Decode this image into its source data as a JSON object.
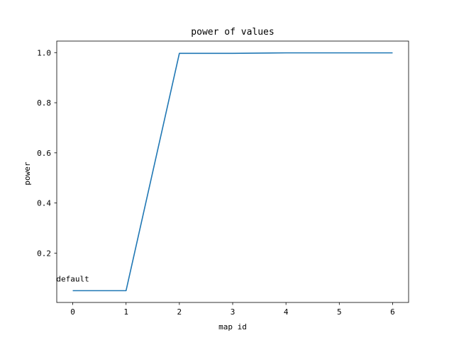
{
  "chart_data": {
    "type": "line",
    "title": "power of values",
    "xlabel": "map id",
    "ylabel": "power",
    "x": [
      0,
      1,
      2,
      3,
      4,
      5,
      6
    ],
    "series": [
      {
        "values": [
          0.05,
          0.05,
          0.997,
          0.997,
          0.999,
          0.999,
          0.999
        ],
        "color": "#1f77b4"
      }
    ],
    "xlim": [
      -0.3,
      6.3
    ],
    "ylim": [
      0.003,
      1.046
    ],
    "xticks": [
      0,
      1,
      2,
      3,
      4,
      5,
      6
    ],
    "yticks": [
      0.2,
      0.4,
      0.6,
      0.8,
      1.0
    ],
    "ytick_labels": [
      "0.2",
      "0.4",
      "0.6",
      "0.8",
      "1.0"
    ],
    "grid": false,
    "annotations": [
      {
        "text": "default",
        "x": 0,
        "y": 0.05
      }
    ]
  }
}
